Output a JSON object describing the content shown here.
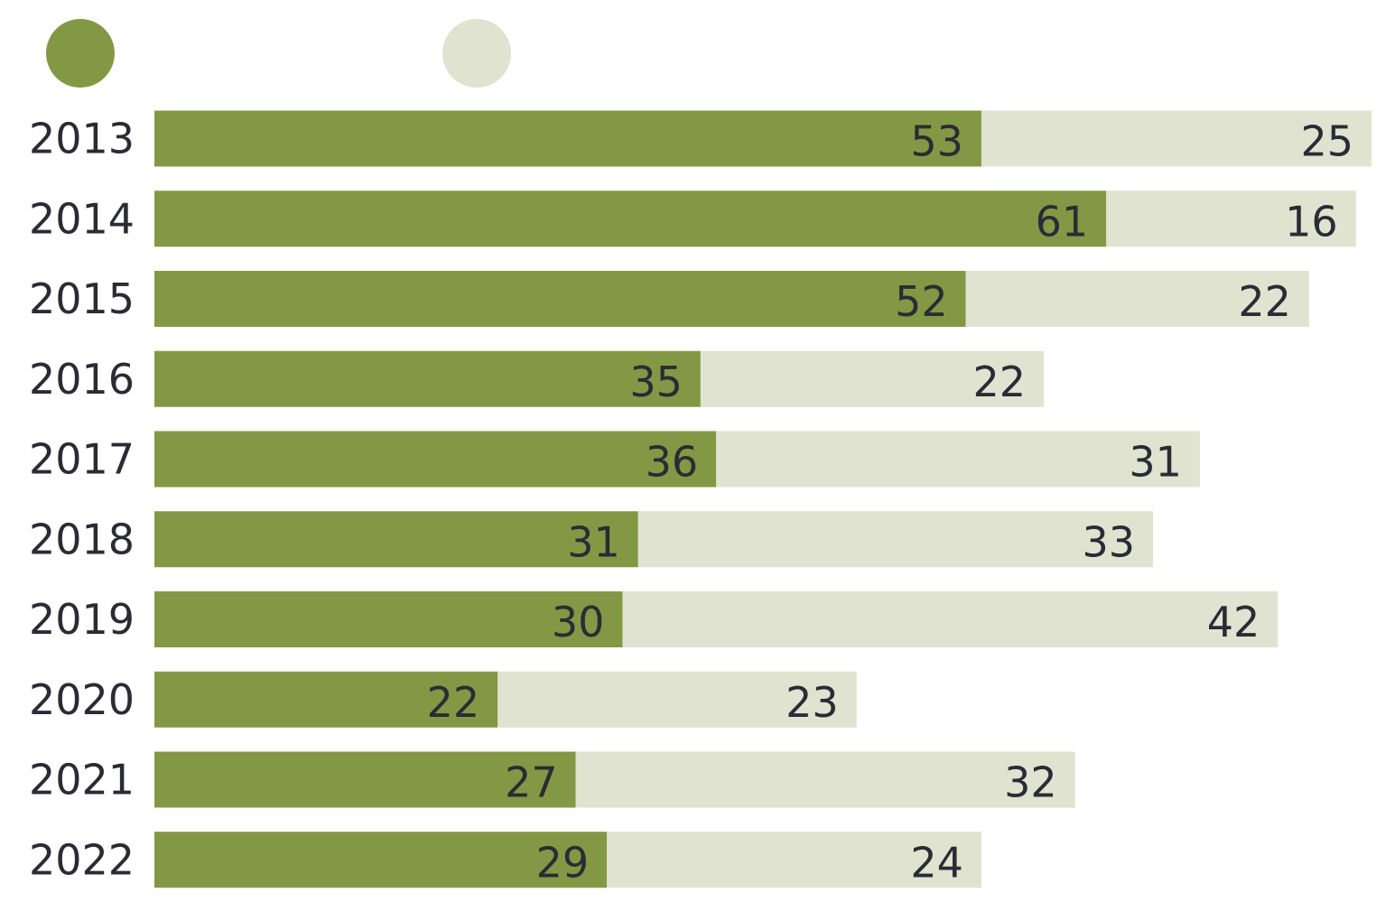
{
  "chart_data": {
    "type": "bar",
    "orientation": "horizontal",
    "stacked": true,
    "categories": [
      "2013",
      "2014",
      "2015",
      "2016",
      "2017",
      "2018",
      "2019",
      "2020",
      "2021",
      "2022"
    ],
    "series": [
      {
        "values": [
          53,
          61,
          52,
          35,
          36,
          31,
          30,
          22,
          27,
          29
        ],
        "color": "#839844"
      },
      {
        "values": [
          25,
          16,
          22,
          22,
          31,
          33,
          42,
          23,
          32,
          24
        ],
        "color": "#dfe3d0"
      }
    ],
    "xlim": [
      0,
      78
    ],
    "grid": false,
    "legend": "top-left",
    "data_labels": true
  },
  "colors": {
    "text": "#2b2b35",
    "background": "#ffffff"
  }
}
